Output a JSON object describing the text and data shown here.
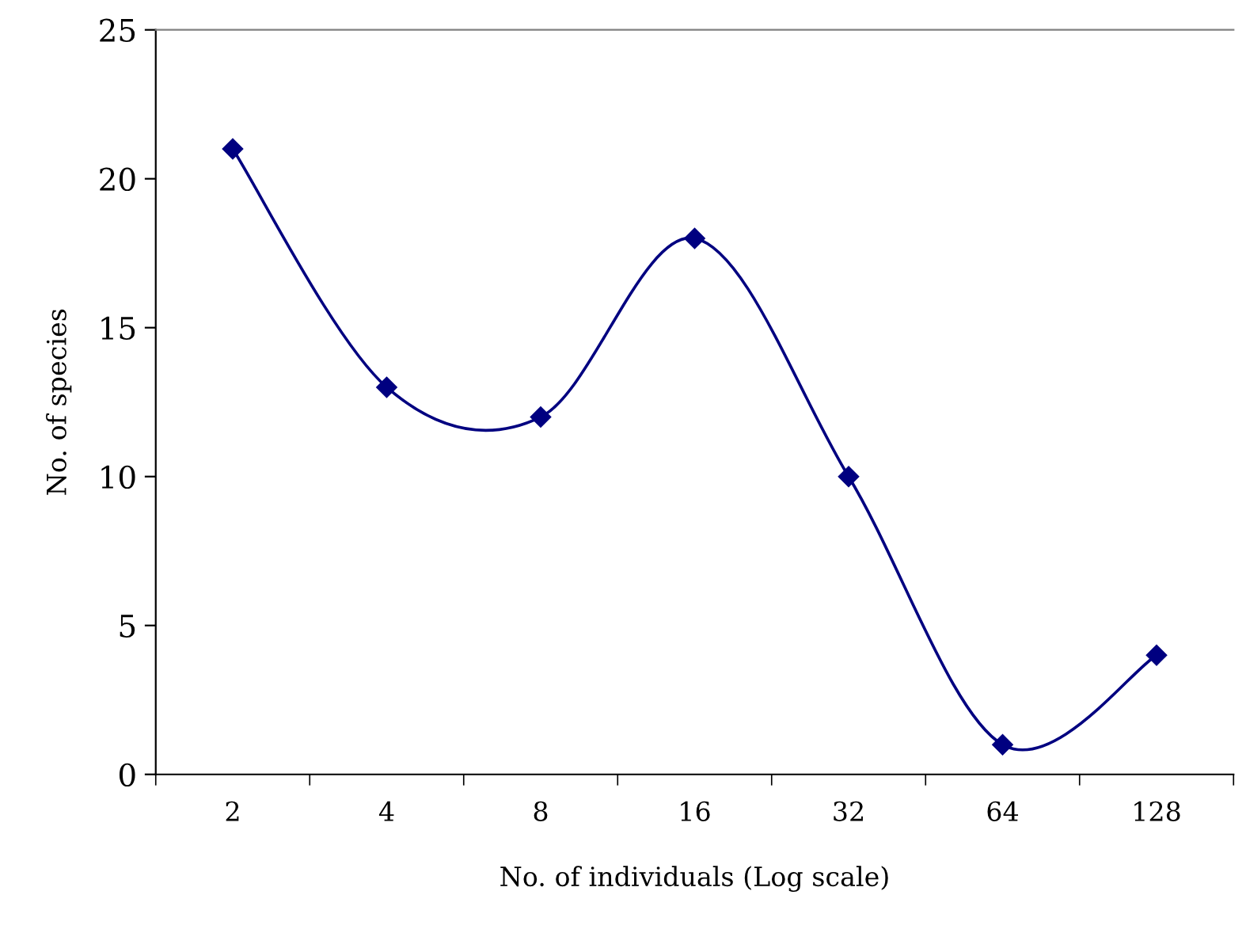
{
  "chart_data": {
    "type": "line",
    "xlabel": "No. of individuals (Log scale)",
    "ylabel": "No. of species",
    "categories": [
      "2",
      "4",
      "8",
      "16",
      "32",
      "64",
      "128"
    ],
    "series": [
      {
        "color": "#000080",
        "values": [
          21,
          13,
          12,
          18,
          10,
          1,
          4
        ]
      }
    ],
    "ylim": [
      0,
      25
    ],
    "yticks": [
      0,
      5,
      10,
      15,
      20,
      25
    ],
    "marker": "diamond",
    "line_style": "solid",
    "grid": false,
    "legend": false
  }
}
